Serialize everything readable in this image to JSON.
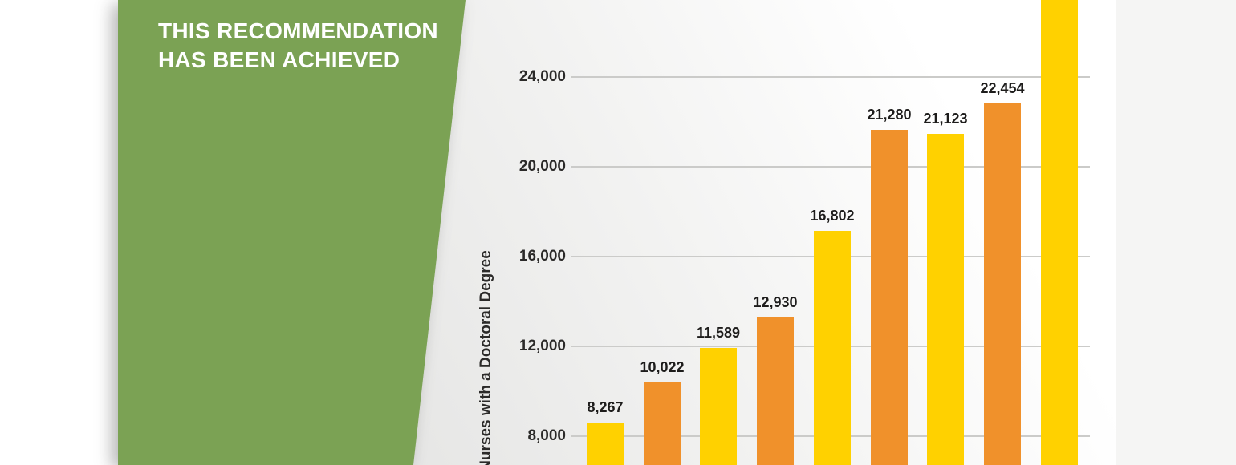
{
  "banner": {
    "line1": "THIS RECOMMENDATION",
    "line2": "HAS BEEN ACHIEVED"
  },
  "chart_data": {
    "type": "bar",
    "title": "",
    "xlabel": "",
    "ylabel": "Nurses with a Doctoral Degree",
    "values": [
      8267,
      10022,
      11589,
      12930,
      16802,
      21280,
      21123,
      22454,
      null
    ],
    "bar_labels": [
      "8,267",
      "10,022",
      "11,589",
      "12,930",
      "16,802",
      "21,280",
      "21,123",
      "22,454",
      null
    ],
    "bar_colors": [
      "#FFD100",
      "#F0912B",
      "#FFD100",
      "#F0912B",
      "#FFD100",
      "#F0912B",
      "#FFD100",
      "#F0912B",
      "#FFD100"
    ],
    "yticks": [
      24000,
      20000,
      16000,
      12000,
      8000
    ],
    "ytick_labels": [
      "24,000",
      "20,000",
      "16,000",
      "12,000",
      "8,000"
    ],
    "ylim_visible": [
      6750,
      25200
    ],
    "grid": true,
    "legend_position": "none",
    "x_axis_labels_visible": false,
    "last_bar_cut_off_at_top": true
  },
  "colors": {
    "banner_green": "#7BA254",
    "bar_yellow": "#FFD100",
    "bar_orange": "#F0912B",
    "grid_line": "#CBCBC9",
    "text_dark": "#2B2A29",
    "banner_text": "#FFFFFF"
  }
}
